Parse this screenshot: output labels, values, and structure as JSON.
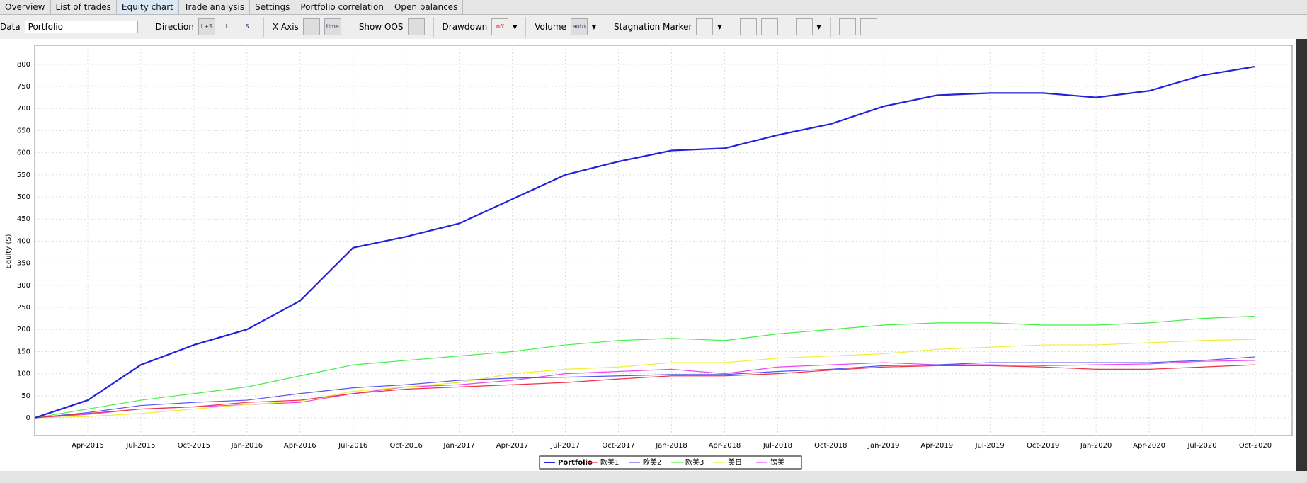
{
  "tabs": [
    "Overview",
    "List of trades",
    "Equity chart",
    "Trade analysis",
    "Settings",
    "Portfolio correlation",
    "Open balances"
  ],
  "toolbar": {
    "data_label": "Data",
    "data_value": "Portfolio",
    "direction": "Direction",
    "dir_ls": "L+S",
    "dir_l": "L",
    "dir_s": "S",
    "x_axis": "X Axis",
    "x_axis_icon": "time",
    "show_oos": "Show OOS",
    "drawdown": "Drawdown",
    "drawdown_icon": "off",
    "volume": "Volume",
    "volume_icon": "auto",
    "stagnation": "Stagnation Marker"
  },
  "chart_data": {
    "type": "line",
    "y_label": "Equity ($)",
    "x": [
      null,
      "Apr-2015",
      "Jul-2015",
      "Oct-2015",
      "Jan-2016",
      "Apr-2016",
      "Jul-2016",
      "Oct-2016",
      "Jan-2017",
      "Apr-2017",
      "Jul-2017",
      "Oct-2017",
      "Jan-2018",
      "Apr-2018",
      "Jul-2018",
      "Oct-2018",
      "Jan-2019",
      "Apr-2019",
      "Jul-2019",
      "Oct-2019",
      "Jan-2020",
      "Apr-2020",
      "Jul-2020",
      "Oct-2020"
    ],
    "ylim": [
      -40,
      843
    ],
    "yticks": [
      0,
      50,
      100,
      150,
      200,
      250,
      300,
      350,
      400,
      450,
      500,
      550,
      600,
      650,
      700,
      750,
      800
    ],
    "grid": true,
    "series": [
      {
        "name": "Portfolio",
        "color": "#2222dd",
        "values": [
          0,
          40,
          120,
          165,
          200,
          265,
          385,
          410,
          440,
          495,
          550,
          580,
          605,
          610,
          640,
          665,
          705,
          730,
          735,
          735,
          725,
          740,
          775,
          795
        ]
      },
      {
        "name": "欧美1",
        "color": "#ee3344",
        "values": [
          0,
          10,
          20,
          25,
          35,
          40,
          55,
          65,
          70,
          75,
          80,
          88,
          95,
          95,
          100,
          108,
          115,
          118,
          118,
          115,
          110,
          110,
          115,
          120
        ]
      },
      {
        "name": "欧美2",
        "color": "#5555ee",
        "values": [
          0,
          12,
          28,
          35,
          40,
          55,
          68,
          75,
          85,
          90,
          92,
          95,
          98,
          98,
          105,
          110,
          118,
          120,
          125,
          125,
          125,
          125,
          130,
          138
        ]
      },
      {
        "name": "欧美3",
        "color": "#44ee44",
        "values": [
          0,
          20,
          40,
          55,
          70,
          95,
          120,
          130,
          140,
          150,
          165,
          175,
          180,
          175,
          190,
          200,
          210,
          215,
          215,
          210,
          210,
          215,
          225,
          230
        ]
      },
      {
        "name": "美日",
        "color": "#eeee33",
        "values": [
          0,
          3,
          10,
          20,
          30,
          38,
          60,
          70,
          80,
          100,
          110,
          115,
          125,
          125,
          135,
          140,
          145,
          155,
          160,
          165,
          165,
          170,
          175,
          178
        ]
      },
      {
        "name": "镑美",
        "color": "#ee44ee",
        "values": [
          0,
          8,
          20,
          25,
          30,
          35,
          55,
          70,
          75,
          85,
          100,
          105,
          110,
          100,
          115,
          120,
          125,
          120,
          120,
          118,
          120,
          122,
          128,
          130
        ]
      }
    ]
  }
}
